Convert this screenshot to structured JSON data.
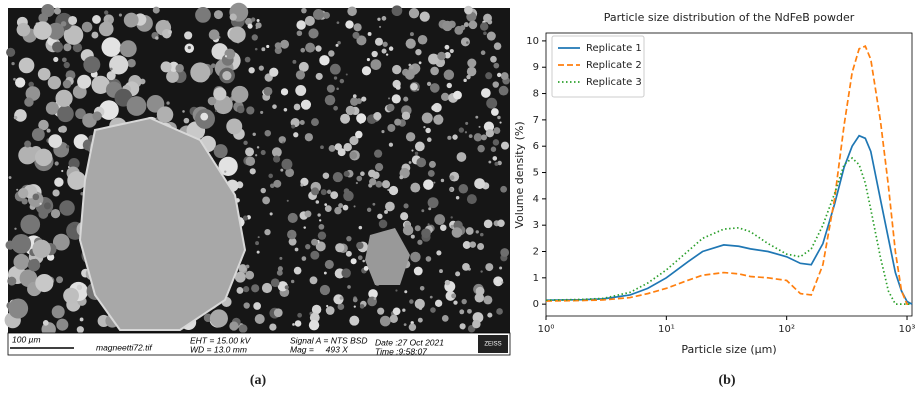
{
  "sem_image": {
    "info": [
      "100 µm",
      "magneetti72.tif",
      "EHT = 15.00 kV",
      "WD = 13.0 mm",
      "Signal A = NTS BSD",
      "Mag =     493 X",
      "Date :27 Oct 2021",
      "Time :9:58:07",
      "ZEISS"
    ]
  },
  "captions": [
    "(a)",
    "(b)"
  ],
  "chart_data": {
    "type": "line",
    "title": "Particle size distribution of the NdFeB powder",
    "x_label": "Particle size (µm)",
    "y_label": "Volume density (%)",
    "x": [
      1,
      2,
      3,
      5,
      7,
      10,
      15,
      20,
      30,
      40,
      50,
      70,
      100,
      130,
      160,
      200,
      250,
      300,
      350,
      400,
      450,
      500,
      600,
      700,
      800,
      900,
      1000,
      1100
    ],
    "series": [
      {
        "name": "Replicate 1",
        "color": "#1f77b4",
        "style": "solid",
        "values": [
          0.15,
          0.17,
          0.2,
          0.35,
          0.6,
          1.0,
          1.6,
          2.0,
          2.25,
          2.2,
          2.1,
          2.0,
          1.8,
          1.55,
          1.5,
          2.3,
          3.8,
          5.2,
          6.0,
          6.4,
          6.3,
          5.8,
          4.0,
          2.5,
          1.2,
          0.5,
          0.1,
          0
        ]
      },
      {
        "name": "Replicate 2",
        "color": "#ff7f0e",
        "style": "dashed",
        "values": [
          0.12,
          0.14,
          0.16,
          0.25,
          0.4,
          0.6,
          0.9,
          1.1,
          1.2,
          1.15,
          1.05,
          1.0,
          0.9,
          0.4,
          0.35,
          1.5,
          4.0,
          6.8,
          8.8,
          9.7,
          9.8,
          9.3,
          7.0,
          4.5,
          2.0,
          0.5,
          0,
          0
        ]
      },
      {
        "name": "Replicate 3",
        "color": "#2ca02c",
        "style": "dotted",
        "values": [
          0.15,
          0.18,
          0.22,
          0.45,
          0.8,
          1.3,
          2.0,
          2.5,
          2.85,
          2.9,
          2.75,
          2.3,
          1.9,
          1.8,
          2.1,
          3.0,
          4.2,
          5.3,
          5.55,
          5.3,
          4.6,
          3.6,
          1.8,
          0.5,
          0,
          0,
          0,
          0
        ]
      }
    ],
    "x_scale": "log",
    "xlim": [
      1,
      1100
    ],
    "xticks": [
      {
        "value": 1,
        "label": "10⁰"
      },
      {
        "value": 10,
        "label": "10¹"
      },
      {
        "value": 100,
        "label": "10²"
      },
      {
        "value": 1000,
        "label": "10³"
      }
    ],
    "ylim": [
      -0.45,
      10.3
    ],
    "yticks": [
      0,
      1,
      2,
      3,
      4,
      5,
      6,
      7,
      8,
      9,
      10
    ],
    "grid": false,
    "legend": "upper-left"
  }
}
